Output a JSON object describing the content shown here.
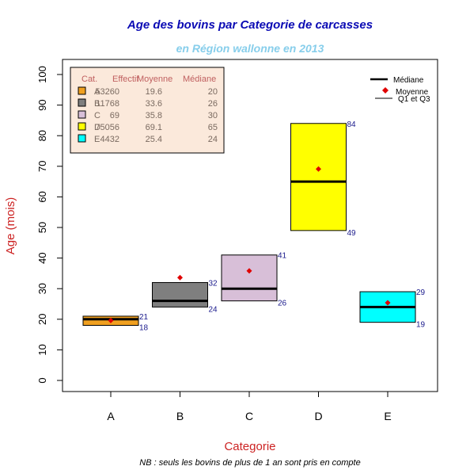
{
  "chart_data": {
    "type": "boxplot",
    "title": "Age des bovins par Categorie de carcasses",
    "subtitle": "en Région wallonne en 2013",
    "xlabel": "Categorie",
    "ylabel": "Age (mois)",
    "footnote": "NB : seuls les bovins de plus de 1 an sont pris en compte",
    "ylim": [
      0,
      100
    ],
    "yticks": [
      "0",
      "10",
      "20",
      "30",
      "40",
      "50",
      "60",
      "70",
      "80",
      "90",
      "100"
    ],
    "categories": [
      "A",
      "B",
      "C",
      "D",
      "E"
    ],
    "q1": [
      18,
      24,
      26,
      49,
      19
    ],
    "q3": [
      21,
      32,
      41,
      84,
      29
    ],
    "median": [
      20,
      26,
      30,
      65,
      24
    ],
    "mean": [
      19.6,
      33.6,
      35.8,
      69.1,
      25.4
    ],
    "q1_labels": [
      "18",
      "24",
      "26",
      "49",
      "19"
    ],
    "q3_labels": [
      "21",
      "32",
      "41",
      "84",
      "29"
    ],
    "colors": [
      "#f0a020",
      "#7f7f7f",
      "#d8bfd8",
      "#ffff00",
      "#00ffff"
    ],
    "table": {
      "headers": [
        "Cat.",
        "Effectif",
        "Moyenne",
        "Médiane"
      ],
      "rows": [
        [
          "A",
          "53260",
          "19.6",
          "20"
        ],
        [
          "B",
          "11768",
          "33.6",
          "26"
        ],
        [
          "C",
          "69",
          "35.8",
          "30"
        ],
        [
          "D",
          "75056",
          "69.1",
          "65"
        ],
        [
          "E",
          "4432",
          "25.4",
          "24"
        ]
      ]
    },
    "legend": {
      "position": "top-right",
      "items": [
        "Médiane",
        "Moyenne",
        "Q1 et Q3"
      ]
    }
  },
  "colors": {
    "title": "#0a0ab4",
    "subtitle": "#87ceeb",
    "axis_label": "#cc2222",
    "quartile_label": "#1a1a8c",
    "mean_marker": "#e00000",
    "table_bg": "#fbe9db",
    "table_text": "#7a6a60",
    "table_header": "#c06060"
  }
}
